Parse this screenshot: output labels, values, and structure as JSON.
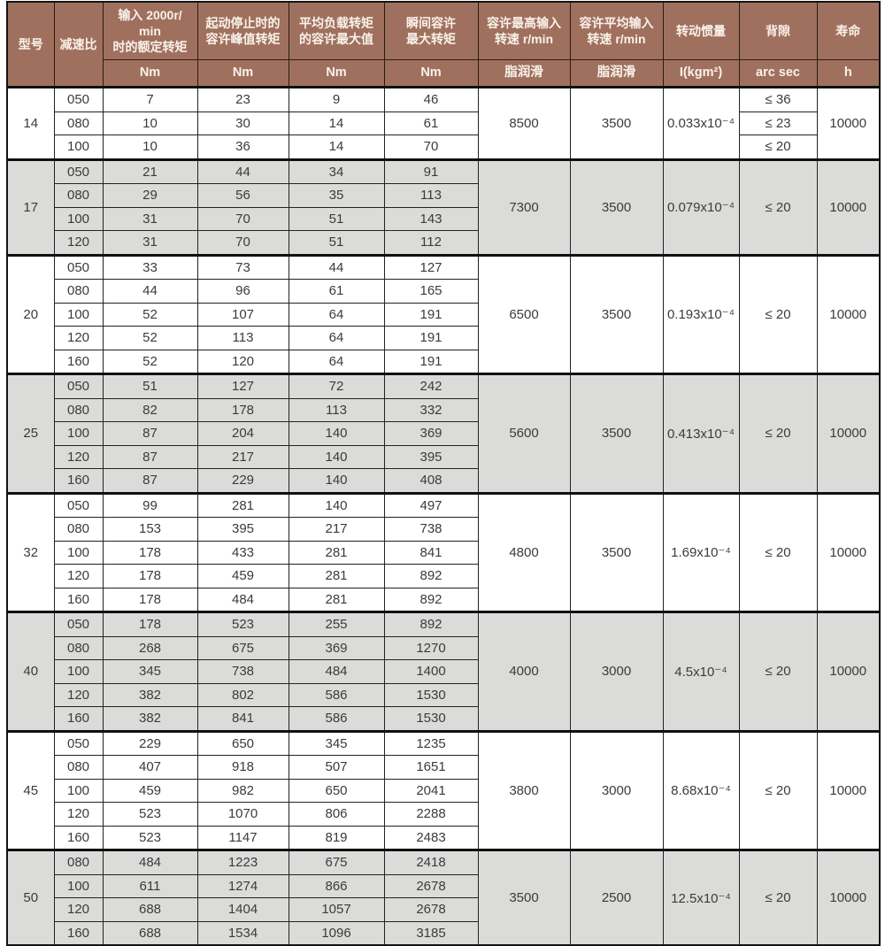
{
  "header": {
    "model": "型号",
    "ratio": "减速比",
    "rated": "输入 2000r/\nmin\n时的额定转矩",
    "peak": "起动停止时的\n容许峰值转矩",
    "avg_load": "平均负载转矩\n的容许最大值",
    "instant": "瞬间容许\n最大转矩",
    "max_input_speed": "容许最高输入\n转速 r/min",
    "avg_input_speed": "容许平均输入\n转速 r/min",
    "inertia": "转动惯量",
    "backlash": "背隙",
    "life": "寿命",
    "units": [
      "Nm",
      "Nm",
      "Nm",
      "Nm",
      "脂润滑",
      "脂润滑",
      "I(kgm²)",
      "arc sec",
      "h"
    ]
  },
  "colors": {
    "header_bg": "#a0705e",
    "header_text": "#f9f2ea",
    "stripe_bg": "#dbdbd9",
    "row_bg": "#ffffff",
    "border": "#141414",
    "data_text": "#3b3b3b"
  },
  "groups": [
    {
      "model": "14",
      "max_input_speed": "8500",
      "avg_input_speed": "3500",
      "inertia": "0.033x10⁻⁴",
      "backlash": null,
      "life": "10000",
      "rows": [
        {
          "ratio": "050",
          "rated": "7",
          "peak": "23",
          "avg_load": "9",
          "instant": "46",
          "backlash": "≤ 36"
        },
        {
          "ratio": "080",
          "rated": "10",
          "peak": "30",
          "avg_load": "14",
          "instant": "61",
          "backlash": "≤ 23"
        },
        {
          "ratio": "100",
          "rated": "10",
          "peak": "36",
          "avg_load": "14",
          "instant": "70",
          "backlash": "≤ 20"
        }
      ]
    },
    {
      "model": "17",
      "max_input_speed": "7300",
      "avg_input_speed": "3500",
      "inertia": "0.079x10⁻⁴",
      "backlash": "≤ 20",
      "life": "10000",
      "rows": [
        {
          "ratio": "050",
          "rated": "21",
          "peak": "44",
          "avg_load": "34",
          "instant": "91"
        },
        {
          "ratio": "080",
          "rated": "29",
          "peak": "56",
          "avg_load": "35",
          "instant": "113"
        },
        {
          "ratio": "100",
          "rated": "31",
          "peak": "70",
          "avg_load": "51",
          "instant": "143"
        },
        {
          "ratio": "120",
          "rated": "31",
          "peak": "70",
          "avg_load": "51",
          "instant": "112"
        }
      ]
    },
    {
      "model": "20",
      "max_input_speed": "6500",
      "avg_input_speed": "3500",
      "inertia": "0.193x10⁻⁴",
      "backlash": "≤ 20",
      "life": "10000",
      "rows": [
        {
          "ratio": "050",
          "rated": "33",
          "peak": "73",
          "avg_load": "44",
          "instant": "127"
        },
        {
          "ratio": "080",
          "rated": "44",
          "peak": "96",
          "avg_load": "61",
          "instant": "165"
        },
        {
          "ratio": "100",
          "rated": "52",
          "peak": "107",
          "avg_load": "64",
          "instant": "191"
        },
        {
          "ratio": "120",
          "rated": "52",
          "peak": "113",
          "avg_load": "64",
          "instant": "191"
        },
        {
          "ratio": "160",
          "rated": "52",
          "peak": "120",
          "avg_load": "64",
          "instant": "191"
        }
      ]
    },
    {
      "model": "25",
      "max_input_speed": "5600",
      "avg_input_speed": "3500",
      "inertia": "0.413x10⁻⁴",
      "backlash": "≤ 20",
      "life": "10000",
      "rows": [
        {
          "ratio": "050",
          "rated": "51",
          "peak": "127",
          "avg_load": "72",
          "instant": "242"
        },
        {
          "ratio": "080",
          "rated": "82",
          "peak": "178",
          "avg_load": "113",
          "instant": "332"
        },
        {
          "ratio": "100",
          "rated": "87",
          "peak": "204",
          "avg_load": "140",
          "instant": "369"
        },
        {
          "ratio": "120",
          "rated": "87",
          "peak": "217",
          "avg_load": "140",
          "instant": "395"
        },
        {
          "ratio": "160",
          "rated": "87",
          "peak": "229",
          "avg_load": "140",
          "instant": "408"
        }
      ]
    },
    {
      "model": "32",
      "max_input_speed": "4800",
      "avg_input_speed": "3500",
      "inertia": "1.69x10⁻⁴",
      "backlash": "≤ 20",
      "life": "10000",
      "rows": [
        {
          "ratio": "050",
          "rated": "99",
          "peak": "281",
          "avg_load": "140",
          "instant": "497"
        },
        {
          "ratio": "080",
          "rated": "153",
          "peak": "395",
          "avg_load": "217",
          "instant": "738"
        },
        {
          "ratio": "100",
          "rated": "178",
          "peak": "433",
          "avg_load": "281",
          "instant": "841"
        },
        {
          "ratio": "120",
          "rated": "178",
          "peak": "459",
          "avg_load": "281",
          "instant": "892"
        },
        {
          "ratio": "160",
          "rated": "178",
          "peak": "484",
          "avg_load": "281",
          "instant": "892"
        }
      ]
    },
    {
      "model": "40",
      "max_input_speed": "4000",
      "avg_input_speed": "3000",
      "inertia": "4.5x10⁻⁴",
      "backlash": "≤ 20",
      "life": "10000",
      "rows": [
        {
          "ratio": "050",
          "rated": "178",
          "peak": "523",
          "avg_load": "255",
          "instant": "892"
        },
        {
          "ratio": "080",
          "rated": "268",
          "peak": "675",
          "avg_load": "369",
          "instant": "1270"
        },
        {
          "ratio": "100",
          "rated": "345",
          "peak": "738",
          "avg_load": "484",
          "instant": "1400"
        },
        {
          "ratio": "120",
          "rated": "382",
          "peak": "802",
          "avg_load": "586",
          "instant": "1530"
        },
        {
          "ratio": "160",
          "rated": "382",
          "peak": "841",
          "avg_load": "586",
          "instant": "1530"
        }
      ]
    },
    {
      "model": "45",
      "max_input_speed": "3800",
      "avg_input_speed": "3000",
      "inertia": "8.68x10⁻⁴",
      "backlash": "≤ 20",
      "life": "10000",
      "rows": [
        {
          "ratio": "050",
          "rated": "229",
          "peak": "650",
          "avg_load": "345",
          "instant": "1235"
        },
        {
          "ratio": "080",
          "rated": "407",
          "peak": "918",
          "avg_load": "507",
          "instant": "1651"
        },
        {
          "ratio": "100",
          "rated": "459",
          "peak": "982",
          "avg_load": "650",
          "instant": "2041"
        },
        {
          "ratio": "120",
          "rated": "523",
          "peak": "1070",
          "avg_load": "806",
          "instant": "2288"
        },
        {
          "ratio": "160",
          "rated": "523",
          "peak": "1147",
          "avg_load": "819",
          "instant": "2483"
        }
      ]
    },
    {
      "model": "50",
      "max_input_speed": "3500",
      "avg_input_speed": "2500",
      "inertia": "12.5x10⁻⁴",
      "backlash": "≤ 20",
      "life": "10000",
      "rows": [
        {
          "ratio": "080",
          "rated": "484",
          "peak": "1223",
          "avg_load": "675",
          "instant": "2418"
        },
        {
          "ratio": "100",
          "rated": "611",
          "peak": "1274",
          "avg_load": "866",
          "instant": "2678"
        },
        {
          "ratio": "120",
          "rated": "688",
          "peak": "1404",
          "avg_load": "1057",
          "instant": "2678"
        },
        {
          "ratio": "160",
          "rated": "688",
          "peak": "1534",
          "avg_load": "1096",
          "instant": "3185"
        }
      ]
    }
  ]
}
